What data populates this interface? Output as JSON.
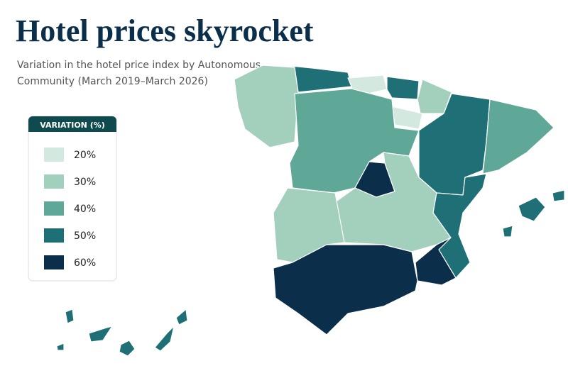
{
  "title": "Hotel prices skyrocket",
  "subtitle": [
    "Variation in the hotel price index by Autonomous",
    "Community (March 2019–March 2026)"
  ],
  "legend": {
    "title": "VARIATION (%)",
    "items": [
      {
        "value": 20,
        "label": "20%",
        "color": "#d3e9df"
      },
      {
        "value": 30,
        "label": "30%",
        "color": "#a3cfbd"
      },
      {
        "value": 40,
        "label": "40%",
        "color": "#5fa898"
      },
      {
        "value": 50,
        "label": "50%",
        "color": "#1f7076"
      },
      {
        "value": 60,
        "label": "60%",
        "color": "#0b2f4a"
      }
    ]
  }
}
